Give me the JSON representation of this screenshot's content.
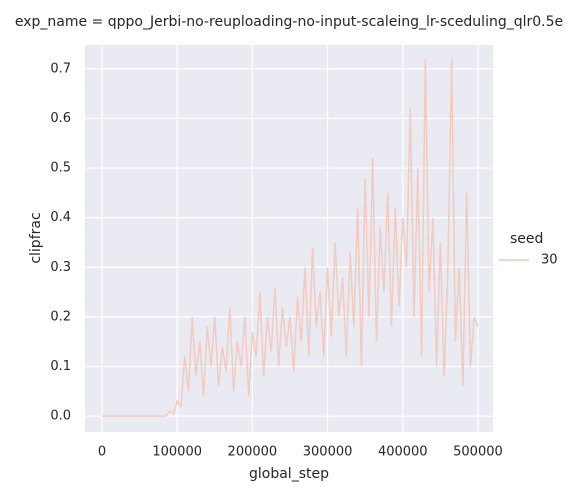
{
  "chart_data": {
    "type": "line",
    "title": "exp_name = qppo_Jerbi-no-reuploading-no-input-scaleing_lr-sceduling_qlr0.5e",
    "x_label": "global_step",
    "y_label": "clipfrac",
    "legend_title": "seed",
    "grid": true,
    "xlim": [
      -22600,
      520000
    ],
    "ylim": [
      -0.032,
      0.748
    ],
    "xticks": [
      0,
      100000,
      200000,
      300000,
      400000,
      500000
    ],
    "yticks": [
      {
        "value": 0,
        "label": "0.0"
      },
      0.1,
      0.2,
      0.3,
      0.4,
      0.5,
      0.6,
      0.7
    ],
    "x": [
      0,
      5000,
      10000,
      15000,
      20000,
      25000,
      30000,
      35000,
      40000,
      45000,
      50000,
      55000,
      60000,
      65000,
      70000,
      75000,
      80000,
      85000,
      90000,
      95000,
      100000,
      105000,
      110000,
      115000,
      120000,
      125000,
      130000,
      135000,
      140000,
      145000,
      150000,
      155000,
      160000,
      165000,
      170000,
      175000,
      180000,
      185000,
      190000,
      195000,
      200000,
      205000,
      210000,
      215000,
      220000,
      225000,
      230000,
      235000,
      240000,
      245000,
      250000,
      255000,
      260000,
      265000,
      270000,
      275000,
      280000,
      285000,
      290000,
      295000,
      300000,
      305000,
      310000,
      315000,
      320000,
      325000,
      330000,
      335000,
      340000,
      345000,
      350000,
      355000,
      360000,
      365000,
      370000,
      375000,
      380000,
      385000,
      390000,
      395000,
      400000,
      405000,
      410000,
      415000,
      420000,
      425000,
      430000,
      435000,
      440000,
      445000,
      450000,
      455000,
      460000,
      465000,
      470000,
      475000,
      480000,
      485000,
      490000,
      495000,
      500000
    ],
    "series": [
      {
        "name": "30",
        "color": "#f1cbbf",
        "values": [
          0,
          0,
          0,
          0,
          0,
          0,
          0,
          0,
          0,
          0,
          0,
          0,
          0,
          0,
          0,
          0,
          0,
          0,
          0.01,
          0.005,
          0.03,
          0.02,
          0.12,
          0.05,
          0.2,
          0.08,
          0.15,
          0.04,
          0.18,
          0.1,
          0.2,
          0.06,
          0.14,
          0.09,
          0.22,
          0.05,
          0.15,
          0.1,
          0.2,
          0.04,
          0.17,
          0.12,
          0.25,
          0.08,
          0.2,
          0.13,
          0.26,
          0.1,
          0.22,
          0.14,
          0.2,
          0.09,
          0.24,
          0.15,
          0.3,
          0.12,
          0.34,
          0.18,
          0.25,
          0.12,
          0.3,
          0.16,
          0.35,
          0.2,
          0.28,
          0.12,
          0.33,
          0.18,
          0.42,
          0.1,
          0.48,
          0.2,
          0.52,
          0.15,
          0.38,
          0.25,
          0.45,
          0.18,
          0.42,
          0.22,
          0.4,
          0.3,
          0.62,
          0.2,
          0.5,
          0.12,
          0.72,
          0.25,
          0.4,
          0.1,
          0.35,
          0.08,
          0.3,
          0.72,
          0.15,
          0.3,
          0.06,
          0.45,
          0.1,
          0.2,
          0.18
        ]
      }
    ]
  }
}
